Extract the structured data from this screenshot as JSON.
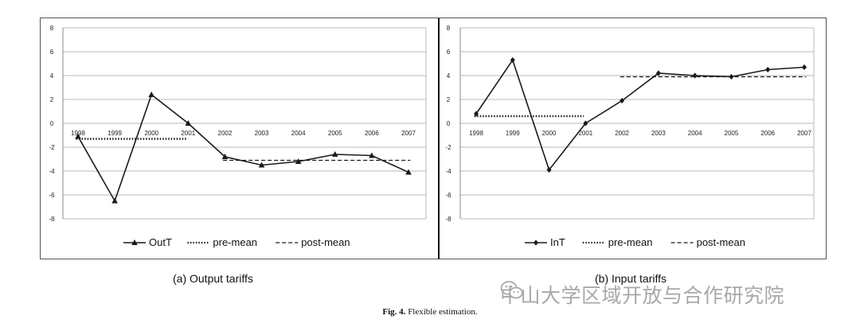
{
  "chart_data": [
    {
      "type": "line",
      "categories": [
        "1998",
        "1999",
        "2000",
        "2001",
        "2002",
        "2003",
        "2004",
        "2005",
        "2006",
        "2007"
      ],
      "yticks": [
        "8",
        "6",
        "4",
        "2",
        "0",
        "-2",
        "-4",
        "-6",
        "-8"
      ],
      "ylim": [
        -8,
        8
      ],
      "grid": true,
      "legend_position": "bottom",
      "series": [
        {
          "name": "OutT",
          "values": [
            -1.1,
            -6.5,
            2.4,
            0.0,
            -2.8,
            -3.5,
            -3.2,
            -2.6,
            -2.7,
            -4.1
          ],
          "marker": "triangle",
          "style": "solid"
        },
        {
          "name": "pre-mean",
          "values": [
            -1.3,
            -1.3,
            -1.3,
            -1.3,
            null,
            null,
            null,
            null,
            null,
            null
          ],
          "style": "dotted"
        },
        {
          "name": "post-mean",
          "values": [
            null,
            null,
            null,
            null,
            -3.1,
            -3.1,
            -3.1,
            -3.1,
            -3.1,
            -3.1
          ],
          "style": "dashed"
        }
      ],
      "subtitle": "(a)   Output tariffs"
    },
    {
      "type": "line",
      "categories": [
        "1998",
        "1999",
        "2000",
        "2001",
        "2002",
        "2003",
        "2004",
        "2005",
        "2006",
        "2007"
      ],
      "yticks": [
        "8",
        "6",
        "4",
        "2",
        "0",
        "-2",
        "-4",
        "-6",
        "-8"
      ],
      "ylim": [
        -8,
        8
      ],
      "grid": true,
      "legend_position": "bottom",
      "series": [
        {
          "name": "InT",
          "values": [
            0.8,
            5.3,
            -3.9,
            0.0,
            1.9,
            4.2,
            4.0,
            3.9,
            4.5,
            4.7
          ],
          "marker": "diamond",
          "style": "solid"
        },
        {
          "name": "pre-mean",
          "values": [
            0.6,
            0.6,
            0.6,
            0.6,
            null,
            null,
            null,
            null,
            null,
            null
          ],
          "style": "dotted"
        },
        {
          "name": "post-mean",
          "values": [
            null,
            null,
            null,
            null,
            3.9,
            3.9,
            3.9,
            3.9,
            3.9,
            3.9
          ],
          "style": "dashed"
        }
      ],
      "subtitle": "(b) Input tariffs"
    }
  ],
  "figure": {
    "label": "Fig. 4.",
    "text": "Flexible estimation."
  },
  "watermark": {
    "text": "中山大学区域开放与合作研究院",
    "icon": "wechat-icon"
  },
  "colors": {
    "line": "#1a1a1a",
    "grid": "#b8b8b8",
    "watermark": "#9a9a9a"
  }
}
